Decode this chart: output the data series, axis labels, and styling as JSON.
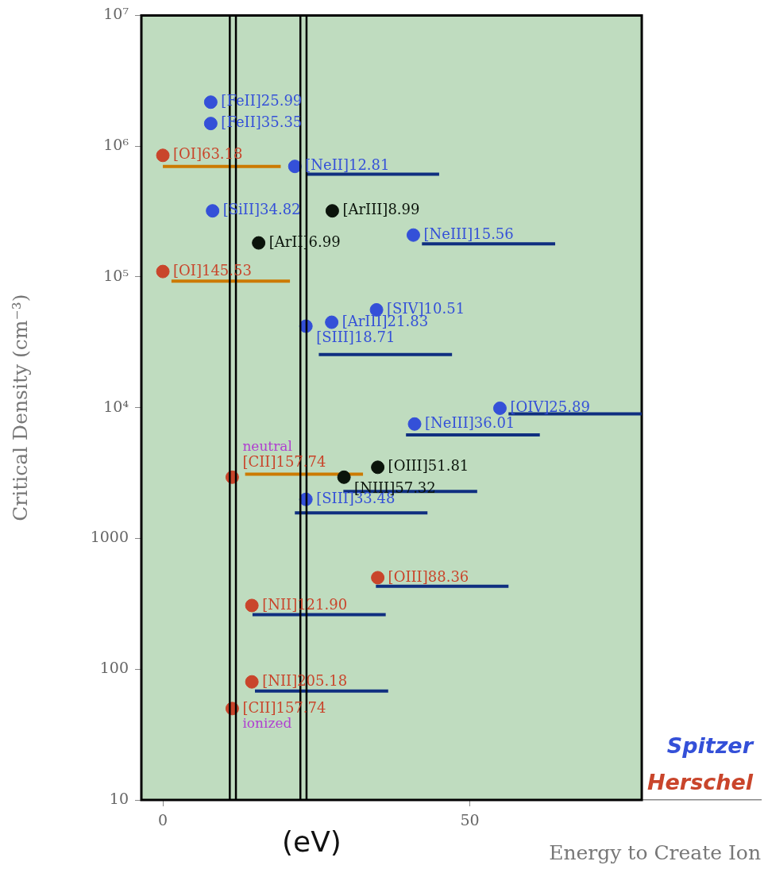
{
  "chart_data": {
    "type": "scatter",
    "ylabel": "Critical Density (cm⁻³)",
    "xlabel": "Energy to Create Ion",
    "xlim": [
      -3.5,
      97.4
    ],
    "xticks": [
      0,
      50
    ],
    "ylim": [
      10,
      10000000
    ],
    "log": "y",
    "yticks": [
      10,
      100,
      1000,
      {
        "value": 10000,
        "label": "10⁴"
      },
      {
        "value": 100000,
        "label": "10⁵"
      },
      {
        "value": 1000000,
        "label": "10⁶"
      },
      {
        "value": 10000000,
        "label": "10⁷"
      }
    ],
    "grid": false,
    "marker": "circle",
    "legend": "bottom right",
    "line_style": "solid",
    "series": [
      {
        "name": "Spitzer",
        "color": "#3450d8",
        "x": [
          7.8,
          7.8,
          21.5,
          8.1,
          40.8,
          34.8,
          27.5,
          23.3,
          54.9,
          41.0,
          23.3
        ],
        "values": [
          2170000,
          1490000,
          700000,
          320000,
          209000,
          56000,
          45000,
          42000,
          9900,
          7500,
          1990
        ]
      },
      {
        "name": "Herschel",
        "color": "#c9452b",
        "x": [
          0,
          0,
          11.3,
          35.0,
          14.5,
          14.5,
          11.3
        ],
        "values": [
          850000,
          110000,
          2940,
          501,
          307,
          80,
          50
        ]
      },
      {
        "color": "#0b140b",
        "x": [
          27.6,
          15.6,
          35.0,
          29.5
        ],
        "values": [
          320000,
          182000,
          3500,
          2940
        ]
      },
      {
        "type": "line",
        "marker": "none",
        "color": "#cc7a00",
        "x": [
          0,
          19.2
        ],
        "values": [
          700000,
          700000
        ]
      },
      {
        "type": "line",
        "marker": "none",
        "color": "#cc7a00",
        "x": [
          1.4,
          20.7
        ],
        "values": [
          93000,
          93000
        ]
      },
      {
        "type": "line",
        "marker": "none",
        "color": "#cc7a00",
        "x": [
          13.4,
          32.6
        ],
        "values": [
          3100,
          3100
        ]
      },
      {
        "type": "line",
        "marker": "none",
        "color": "#0f2f80",
        "x": [
          23.4,
          45.0
        ],
        "values": [
          610000,
          610000
        ]
      },
      {
        "type": "line",
        "marker": "none",
        "color": "#0f2f80",
        "x": [
          42.2,
          63.9
        ],
        "values": [
          179000,
          179000
        ]
      },
      {
        "type": "line",
        "marker": "none",
        "color": "#0f2f80",
        "x": [
          25.4,
          47.1
        ],
        "values": [
          25500,
          25500
        ]
      },
      {
        "type": "line",
        "marker": "none",
        "color": "#0f2f80",
        "x": [
          56.3,
          78.0
        ],
        "values": [
          8960,
          8960
        ]
      },
      {
        "type": "line",
        "marker": "none",
        "color": "#0f2f80",
        "x": [
          39.6,
          61.4
        ],
        "values": [
          6200,
          6200
        ]
      },
      {
        "type": "line",
        "marker": "none",
        "color": "#0f2f80",
        "x": [
          29.4,
          51.2
        ],
        "values": [
          2290,
          2290
        ]
      },
      {
        "type": "line",
        "marker": "none",
        "color": "#0f2f80",
        "x": [
          21.5,
          43.1
        ],
        "values": [
          1570,
          1570
        ]
      },
      {
        "type": "line",
        "marker": "none",
        "color": "#0f2f80",
        "x": [
          34.7,
          56.3
        ],
        "values": [
          430,
          430
        ]
      },
      {
        "type": "line",
        "marker": "none",
        "color": "#0f2f80",
        "x": [
          14.6,
          36.3
        ],
        "values": [
          261,
          261
        ]
      },
      {
        "type": "line",
        "marker": "none",
        "color": "#0f2f80",
        "x": [
          15.0,
          36.7
        ],
        "values": [
          68,
          68
        ]
      }
    ],
    "bands": [
      {
        "axis": "x",
        "from": -3.5,
        "to": 78,
        "color": "#bfdcbf"
      }
    ],
    "ref_lines": [
      {
        "axis": "x",
        "value": 10.9,
        "color": "#000000"
      },
      {
        "axis": "x",
        "value": 11.9,
        "color": "#000000"
      },
      {
        "axis": "x",
        "value": 22.4,
        "color": "#000000"
      },
      {
        "axis": "x",
        "value": 23.4,
        "color": "#000000"
      }
    ],
    "annotations": [
      {
        "text": "[FeII]25.99",
        "x": 7.8,
        "y": 2170000
      },
      {
        "text": "[FeII]35.35",
        "x": 7.8,
        "y": 1490000
      },
      {
        "text": "[NeII]12.81",
        "x": 21.5,
        "y": 700000
      },
      {
        "text": "[SiII]34.82",
        "x": 8.1,
        "y": 320000
      },
      {
        "text": "[NeIII]15.56",
        "x": 40.8,
        "y": 209000
      },
      {
        "text": "[SIV]10.51",
        "x": 34.8,
        "y": 56000
      },
      {
        "text": "[ArIII]21.83",
        "x": 27.5,
        "y": 45000
      },
      {
        "text": "[SIII]18.71",
        "x": 23.3,
        "y": 42000
      },
      {
        "text": "[OIV]25.89",
        "x": 54.9,
        "y": 9900
      },
      {
        "text": "[NeIII]36.01",
        "x": 41.0,
        "y": 7500
      },
      {
        "text": "[SIII]33.48",
        "x": 23.3,
        "y": 1990
      },
      {
        "text": "[OI]63.18",
        "x": 0,
        "y": 850000
      },
      {
        "text": "[OI]145.53",
        "x": 0,
        "y": 110000
      },
      {
        "text": "[CII]157.74",
        "x": 11.3,
        "y": 2940
      },
      {
        "text": "neutral",
        "x": 11.3,
        "y": 2940
      },
      {
        "text": "[OIII]88.36",
        "x": 35.0,
        "y": 501
      },
      {
        "text": "[NII]121.90",
        "x": 14.5,
        "y": 307
      },
      {
        "text": "[NII]205.18",
        "x": 14.5,
        "y": 80
      },
      {
        "text": "[CII]157.74",
        "x": 11.3,
        "y": 50
      },
      {
        "text": "ionized",
        "x": 11.3,
        "y": 50
      },
      {
        "text": "[ArIII]8.99",
        "x": 27.6,
        "y": 320000
      },
      {
        "text": "[ArII]6.99",
        "x": 15.6,
        "y": 182000
      },
      {
        "text": "[OIII]51.81",
        "x": 35.0,
        "y": 3500
      },
      {
        "text": "[NIII]57.32",
        "x": 29.5,
        "y": 2940
      },
      "(eV)"
    ]
  }
}
